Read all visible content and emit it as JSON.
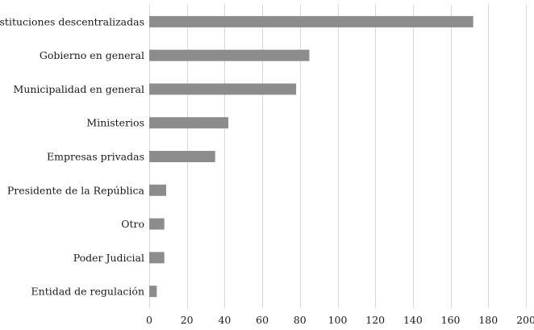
{
  "chart_data": {
    "type": "bar",
    "orientation": "horizontal",
    "title": "",
    "xlabel": "",
    "ylabel": "",
    "categories": [
      "Instituciones descentralizadas",
      "Gobierno en general",
      "Municipalidad en general",
      "Ministerios",
      "Empresas privadas",
      "Presidente de la República",
      "Otro",
      "Poder Judicial",
      "Entidad de regulación"
    ],
    "values": [
      172,
      85,
      78,
      42,
      35,
      9,
      8,
      8,
      4
    ],
    "xlim": [
      0,
      200
    ],
    "xticks": [
      0,
      20,
      40,
      60,
      80,
      100,
      120,
      140,
      160,
      180,
      200
    ],
    "grid": "vertical",
    "legend": "none",
    "bar_color": "#8c8c8c",
    "grid_color": "#d9d9d9"
  }
}
